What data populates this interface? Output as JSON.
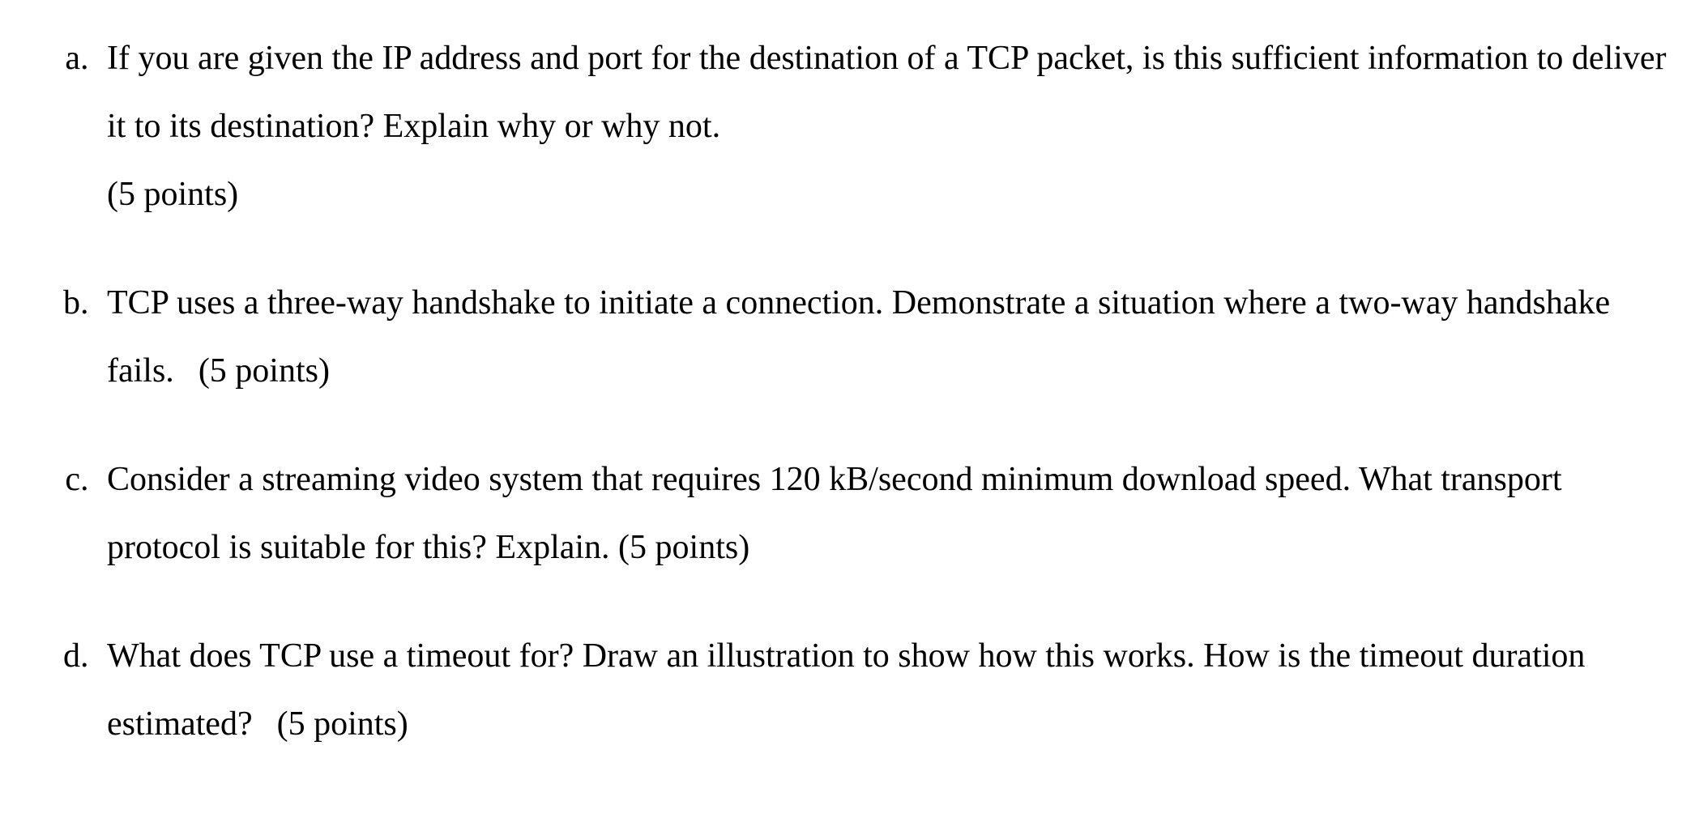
{
  "document": {
    "background_color": "#ffffff",
    "text_color": "#000000",
    "font_family": "Times New Roman",
    "font_size_pt": 32,
    "line_height": 2.0,
    "list_style": "lower-alpha-paren"
  },
  "questions": [
    {
      "label": "a)",
      "text": "If you are given the IP address and port for the destination of a TCP packet, is this sufficient information to deliver it to its destination? Explain why or why not.",
      "points_text": "(5 points)",
      "points_value": 5,
      "points_placement": "newline"
    },
    {
      "label": "b)",
      "text": "TCP uses a three-way handshake to initiate a connection. Demonstrate a situation where a two-way handshake fails.",
      "points_text": "(5 points)",
      "points_value": 5,
      "points_placement": "inline-gap"
    },
    {
      "label": "c)",
      "text": "Consider a streaming video system that requires 120 kB/second minimum download speed. What transport protocol is suitable for this? Explain.",
      "points_text": "(5 points)",
      "points_value": 5,
      "points_placement": "inline"
    },
    {
      "label": "d)",
      "text": "What does TCP use a timeout for? Draw an illustration to show how this works. How is the timeout duration estimated?",
      "points_text": "(5 points)",
      "points_value": 5,
      "points_placement": "inline-gap"
    }
  ]
}
